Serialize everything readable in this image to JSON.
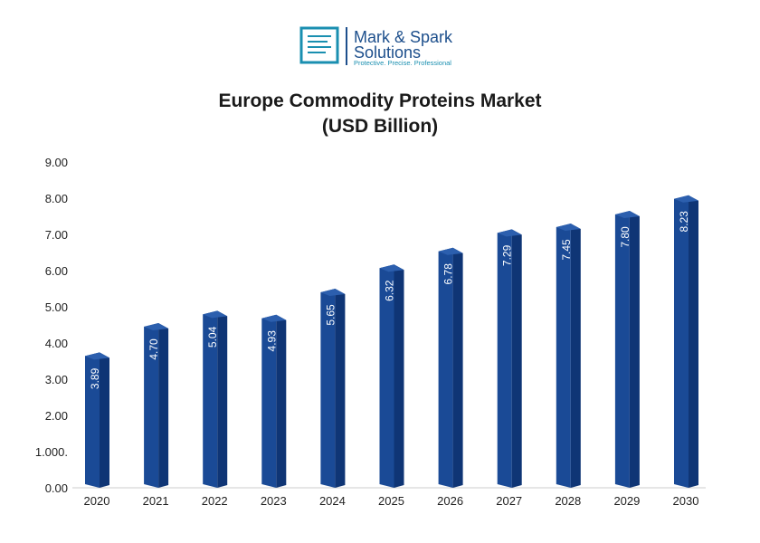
{
  "logo": {
    "line1": "Mark & Spark",
    "line2": "Solutions",
    "tagline": "Protective. Precise. Professional",
    "color": "#1d4f8c",
    "accent": "#1a8fb0"
  },
  "chart_data": {
    "type": "bar",
    "title": [
      "Europe Commodity Proteins Market",
      "(USD Billion)"
    ],
    "categories": [
      "2020",
      "2021",
      "2022",
      "2023",
      "2024",
      "2025",
      "2026",
      "2027",
      "2028",
      "2029",
      "2030"
    ],
    "values": [
      3.89,
      4.7,
      5.04,
      4.93,
      5.65,
      6.32,
      6.78,
      7.29,
      7.45,
      7.8,
      8.23
    ],
    "value_labels": [
      "3.89",
      "4.70",
      "5.04",
      "4.93",
      "5.65",
      "6.32",
      "6.78",
      "7.29",
      "7.45",
      "7.80",
      "8.23"
    ],
    "yticks": [
      "0.00",
      "1.000.",
      "2.00",
      "3.00",
      "4.00",
      "5.00",
      "6.00",
      "7.00",
      "8.00",
      "9.00"
    ],
    "ylim": [
      0,
      9
    ],
    "grid": false,
    "bar_color": "#1a4a96",
    "bar_side_color": "#0f3575"
  }
}
